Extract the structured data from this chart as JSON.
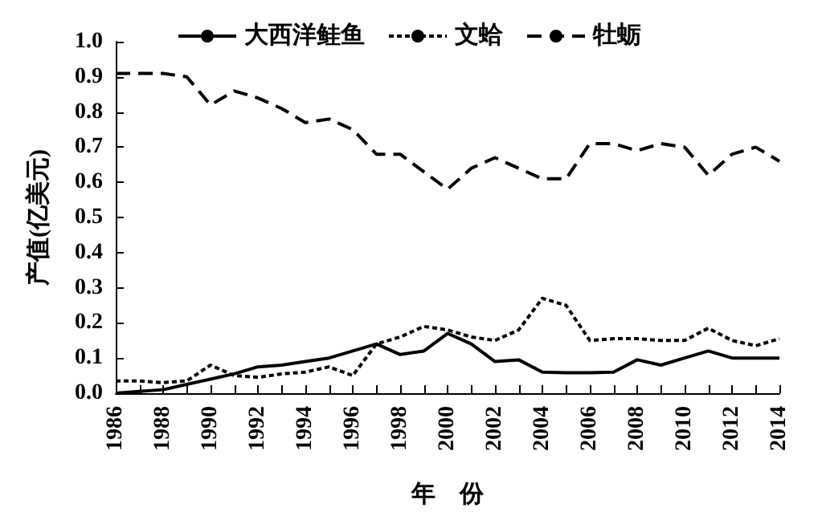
{
  "chart_data": {
    "type": "line",
    "xlabel": "年　份",
    "ylabel": "产值(亿美元)",
    "x": [
      1986,
      1987,
      1988,
      1989,
      1990,
      1991,
      1992,
      1993,
      1994,
      1995,
      1996,
      1997,
      1998,
      1999,
      2000,
      2001,
      2002,
      2003,
      2004,
      2005,
      2006,
      2007,
      2008,
      2009,
      2010,
      2011,
      2012,
      2013,
      2014
    ],
    "series": [
      {
        "name": "大西洋鲑鱼",
        "color": "#000000",
        "line_style": "solid",
        "values": [
          0.0,
          0.005,
          0.01,
          0.025,
          0.04,
          0.055,
          0.075,
          0.08,
          0.09,
          0.1,
          0.12,
          0.14,
          0.11,
          0.12,
          0.17,
          0.14,
          0.09,
          0.095,
          0.06,
          0.058,
          0.058,
          0.06,
          0.095,
          0.08,
          0.1,
          0.12,
          0.1,
          0.1,
          0.1
        ]
      },
      {
        "name": "文蛤",
        "color": "#000000",
        "line_style": "dotted",
        "values": [
          0.035,
          0.035,
          0.03,
          0.035,
          0.08,
          0.05,
          0.045,
          0.055,
          0.06,
          0.075,
          0.05,
          0.14,
          0.16,
          0.19,
          0.18,
          0.16,
          0.15,
          0.18,
          0.27,
          0.25,
          0.15,
          0.155,
          0.155,
          0.15,
          0.15,
          0.185,
          0.15,
          0.135,
          0.155
        ]
      },
      {
        "name": "牡蛎",
        "color": "#000000",
        "line_style": "dashed",
        "values": [
          0.91,
          0.91,
          0.91,
          0.9,
          0.82,
          0.86,
          0.84,
          0.81,
          0.77,
          0.78,
          0.75,
          0.68,
          0.68,
          0.63,
          0.58,
          0.64,
          0.67,
          0.64,
          0.61,
          0.61,
          0.71,
          0.71,
          0.69,
          0.71,
          0.7,
          0.62,
          0.68,
          0.7,
          0.66
        ]
      }
    ],
    "xlim": [
      1986,
      2014
    ],
    "xticks": [
      1986,
      {
        "value": 1987,
        "label": null
      },
      1988,
      {
        "value": 1989,
        "label": null
      },
      1990,
      {
        "value": 1991,
        "label": null
      },
      1992,
      {
        "value": 1993,
        "label": null
      },
      1994,
      {
        "value": 1995,
        "label": null
      },
      1996,
      {
        "value": 1997,
        "label": null
      },
      1998,
      {
        "value": 1999,
        "label": null
      },
      2000,
      {
        "value": 2001,
        "label": null
      },
      2002,
      {
        "value": 2003,
        "label": null
      },
      2004,
      {
        "value": 2005,
        "label": null
      },
      2006,
      {
        "value": 2007,
        "label": null
      },
      2008,
      {
        "value": 2009,
        "label": null
      },
      2010,
      {
        "value": 2011,
        "label": null
      },
      2012,
      {
        "value": 2013,
        "label": null
      },
      2014
    ],
    "ylim": [
      0,
      1
    ],
    "yticks": [
      {
        "value": 0,
        "label": "0.0"
      },
      {
        "value": 0.1,
        "label": "0.1"
      },
      {
        "value": 0.2,
        "label": "0.2"
      },
      {
        "value": 0.3,
        "label": "0.3"
      },
      {
        "value": 0.4,
        "label": "0.4"
      },
      {
        "value": 0.5,
        "label": "0.5"
      },
      {
        "value": 0.6,
        "label": "0.6"
      },
      {
        "value": 0.7,
        "label": "0.7"
      },
      {
        "value": 0.8,
        "label": "0.8"
      },
      {
        "value": 0.9,
        "label": "0.9"
      },
      {
        "value": 1,
        "label": "1.0"
      }
    ],
    "grid": false,
    "legend": "top",
    "marker": "none"
  }
}
